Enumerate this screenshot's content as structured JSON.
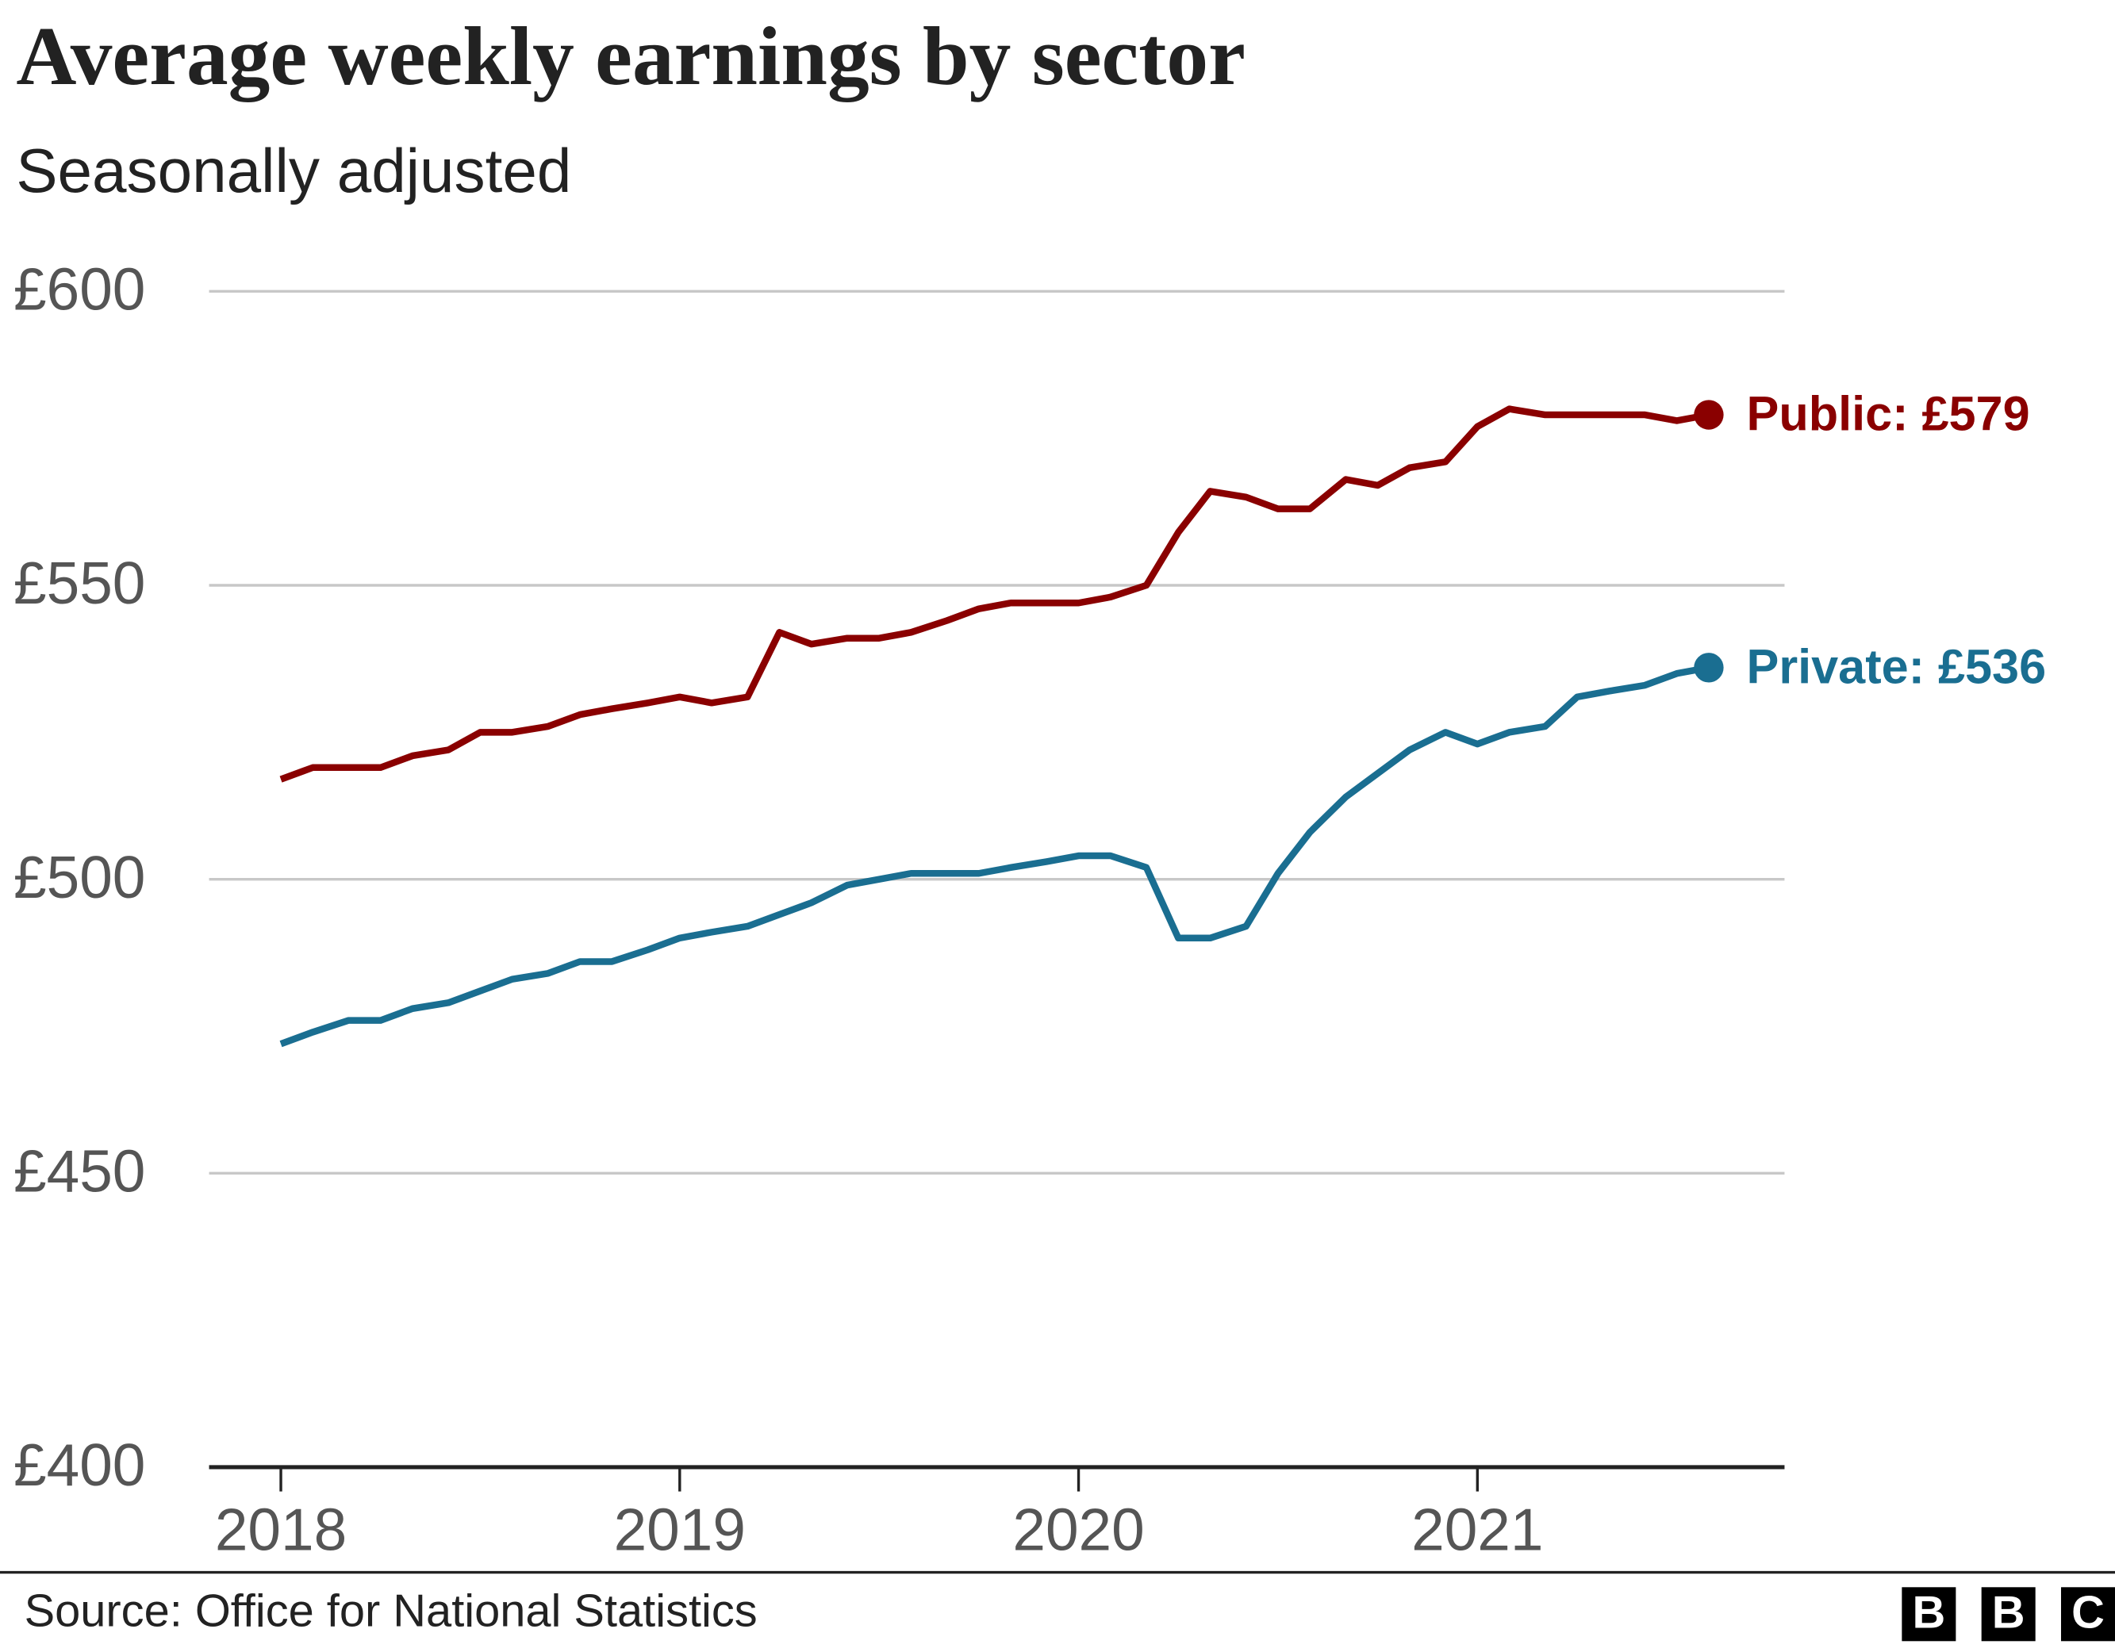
{
  "chart_data": {
    "type": "line",
    "title": "Average weekly earnings by sector",
    "subtitle": "Seasonally adjusted",
    "source": "Source: Office for National Statistics",
    "logo": [
      "B",
      "B",
      "C"
    ],
    "x": [
      2018,
      2018.08,
      2018.17,
      2018.25,
      2018.33,
      2018.42,
      2018.5,
      2018.58,
      2018.67,
      2018.75,
      2018.83,
      2018.92,
      2019,
      2019.08,
      2019.17,
      2019.25,
      2019.33,
      2019.42,
      2019.5,
      2019.58,
      2019.67,
      2019.75,
      2019.83,
      2019.92,
      2020,
      2020.08,
      2020.17,
      2020.25,
      2020.33,
      2020.42,
      2020.5,
      2020.58,
      2020.67,
      2020.75,
      2020.83,
      2020.92,
      2021,
      2021.08,
      2021.17,
      2021.25,
      2021.33,
      2021.42,
      2021.5,
      2021.58
    ],
    "series": [
      {
        "name": "Public",
        "end_label": "Public: £579",
        "color": "#8a0000",
        "values": [
          517,
          519,
          519,
          519,
          521,
          522,
          525,
          525,
          526,
          528,
          529,
          530,
          531,
          530,
          531,
          542,
          540,
          541,
          541,
          542,
          544,
          546,
          547,
          547,
          547,
          548,
          550,
          559,
          566,
          565,
          563,
          563,
          568,
          567,
          570,
          571,
          577,
          580,
          579,
          579,
          579,
          579,
          578,
          579
        ]
      },
      {
        "name": "Private",
        "end_label": "Private: £536",
        "color": "#1a6e91",
        "values": [
          472,
          474,
          476,
          476,
          478,
          479,
          481,
          483,
          484,
          486,
          486,
          488,
          490,
          491,
          492,
          494,
          496,
          499,
          500,
          501,
          501,
          501,
          502,
          503,
          504,
          504,
          502,
          490,
          490,
          492,
          501,
          508,
          514,
          518,
          522,
          525,
          523,
          525,
          526,
          531,
          532,
          533,
          535,
          536
        ]
      }
    ],
    "xlim": [
      2017.82,
      2021.77
    ],
    "xticks": [
      2018,
      2019,
      2020,
      2021
    ],
    "ylim": [
      400,
      600
    ],
    "yticks": [
      {
        "value": 400,
        "label": "£400"
      },
      {
        "value": 450,
        "label": "£450"
      },
      {
        "value": 500,
        "label": "£500"
      },
      {
        "value": 550,
        "label": "£550"
      },
      {
        "value": 600,
        "label": "£600"
      }
    ],
    "grid": true
  }
}
